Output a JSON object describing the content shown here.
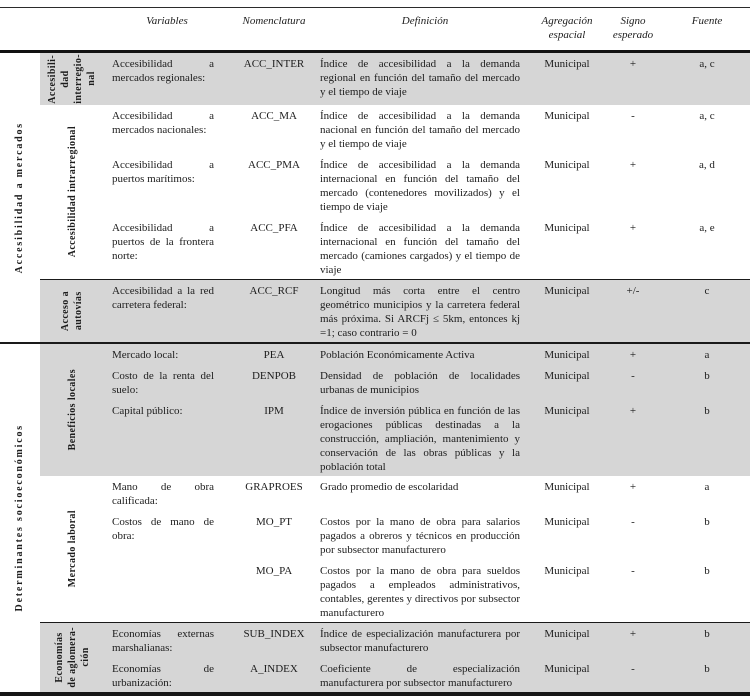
{
  "table": {
    "headers": {
      "variables": "Variables",
      "nomenclatura": "Nomenclatura",
      "definicion": "Definición",
      "agregacion": "Agregación\nespacial",
      "signo": "Signo\nesperado",
      "fuente": "Fuente"
    },
    "colors": {
      "band_shaded": "#d6d6d6",
      "rule": "#1a1a1a",
      "text": "#1c1c1c"
    },
    "groups": [
      {
        "label": "Accesibilidad a mercados",
        "bands": [
          {
            "label": "Accesibili-\ndad\ninterregio-\nnal",
            "rows": [
              {
                "variable": "Accesibilidad a mercados regionales:",
                "nomenclatura": "ACC_INTER",
                "definicion": "Índice de accesibilidad a la demanda regional en función del tamaño del mercado y el tiempo de viaje",
                "agregacion": "Municipal",
                "signo": "+",
                "fuente": "a, c"
              }
            ]
          },
          {
            "label": "Accesibilidad intrarregional",
            "rows": [
              {
                "variable": "Accesibilidad a mercados nacionales:",
                "nomenclatura": "ACC_MA",
                "definicion": "Índice de accesibilidad a la demanda nacional en función del tamaño del mercado y el tiempo de viaje",
                "agregacion": "Municipal",
                "signo": "-",
                "fuente": "a, c"
              },
              {
                "variable": "Accesibilidad a puertos marítimos:",
                "nomenclatura": "ACC_PMA",
                "definicion": "Índice de accesibilidad a la demanda internacional en función del tamaño del mercado (contenedores movilizados) y el tiempo de viaje",
                "agregacion": "Municipal",
                "signo": "+",
                "fuente": "a, d"
              },
              {
                "variable": "Accesibilidad a puertos de la frontera norte:",
                "nomenclatura": "ACC_PFA",
                "definicion": "Índice de accesibilidad a la demanda internacional en función del tamaño del mercado (camiones cargados) y el tiempo de viaje",
                "agregacion": "Municipal",
                "signo": "+",
                "fuente": "a, e"
              }
            ]
          },
          {
            "label": "Acceso a\nautovías",
            "rows": [
              {
                "variable": "Accesibilidad a la red carretera federal:",
                "nomenclatura": "ACC_RCF",
                "definicion": "Longitud más corta entre el centro geométrico municipios y la carretera federal más próxima. Si ARCFj ≤ 5km, entonces kj =1; caso contrario = 0",
                "agregacion": "Municipal",
                "signo": "+/-",
                "fuente": "c"
              }
            ]
          }
        ]
      },
      {
        "label": "Determinantes socioeconómicos",
        "bands": [
          {
            "label": "Beneficios locales",
            "rows": [
              {
                "variable": "Mercado local:",
                "nomenclatura": "PEA",
                "definicion": "Población Económicamente Activa",
                "agregacion": "Municipal",
                "signo": "+",
                "fuente": "a"
              },
              {
                "variable": "Costo de la renta del suelo:",
                "nomenclatura": "DENPOB",
                "definicion": "Densidad de población de localidades urbanas de municipios",
                "agregacion": "Municipal",
                "signo": "-",
                "fuente": "b"
              },
              {
                "variable": "Capital público:",
                "nomenclatura": "IPM",
                "definicion": "Índice de inversión pública en función de las erogaciones públicas destinadas a la construcción, ampliación, mantenimiento y conservación de las obras públicas y la población total",
                "agregacion": "Municipal",
                "signo": "+",
                "fuente": "b"
              }
            ]
          },
          {
            "label": "Mercado laboral",
            "rows": [
              {
                "variable": "Mano de obra calificada:",
                "nomenclatura": "GRAPROES",
                "definicion": "Grado promedio de escolaridad",
                "agregacion": "Municipal",
                "signo": "+",
                "fuente": "a"
              },
              {
                "variable": "Costos de mano de obra:",
                "nomenclatura": "MO_PT",
                "definicion": "Costos por la mano de obra para salarios pagados a obreros y técnicos en producción por subsector manufacturero",
                "agregacion": "Municipal",
                "signo": "-",
                "fuente": "b"
              },
              {
                "variable": "",
                "nomenclatura": "MO_PA",
                "definicion": "Costos por la mano de obra para sueldos pagados a empleados administrativos, contables, gerentes y directivos por subsector manufacturero",
                "agregacion": "Municipal",
                "signo": "-",
                "fuente": "b"
              }
            ]
          },
          {
            "label": "Economías\nde aglomera-\nción",
            "rows": [
              {
                "variable": "Economías externas marshalianas:",
                "nomenclatura": "SUB_INDEX",
                "definicion": "Índice de especialización manufacturera por subsector manufacturero",
                "agregacion": "Municipal",
                "signo": "+",
                "fuente": "b"
              },
              {
                "variable": "Economías de urbanización:",
                "nomenclatura": "A_INDEX",
                "definicion": "Coeficiente de especialización manufacturera por subsector manufacturero",
                "agregacion": "Municipal",
                "signo": "-",
                "fuente": "b"
              }
            ]
          }
        ]
      }
    ]
  }
}
